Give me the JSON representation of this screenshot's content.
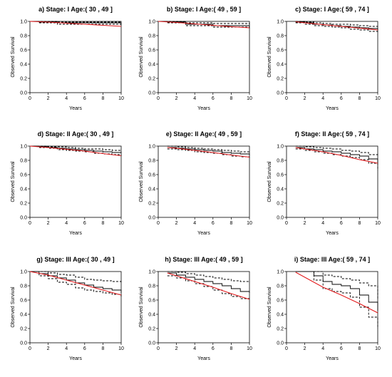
{
  "chart_data": [
    {
      "type": "line",
      "title": "a)  Stage: I  Age:( 30 , 49 ]",
      "xlabel": "Years",
      "ylabel": "Observed Survival",
      "xlim": [
        0,
        10
      ],
      "ylim": [
        0,
        1
      ],
      "xticks": [
        "0",
        "2",
        "4",
        "6",
        "8",
        "10"
      ],
      "yticks": [
        "0.0",
        "0.2",
        "0.4",
        "0.6",
        "0.8",
        "1.0"
      ],
      "series": [
        {
          "style": "step-solid",
          "color": "#000000",
          "x": [
            0,
            1,
            3,
            10
          ],
          "y": [
            1.0,
            0.99,
            0.98,
            0.97
          ]
        },
        {
          "style": "step-dashed",
          "color": "#000000",
          "x": [
            0,
            1,
            3,
            10
          ],
          "y": [
            1.0,
            1.0,
            0.99,
            0.99
          ]
        },
        {
          "style": "step-dashed",
          "color": "#000000",
          "x": [
            0,
            1,
            3,
            10
          ],
          "y": [
            1.0,
            0.98,
            0.96,
            0.95
          ]
        },
        {
          "style": "line",
          "color": "#e41a1c",
          "x": [
            0,
            2,
            4,
            6,
            8,
            10
          ],
          "y": [
            1.0,
            0.99,
            0.975,
            0.96,
            0.945,
            0.93
          ]
        }
      ]
    },
    {
      "type": "line",
      "title": "b)  Stage: I  Age:( 49 , 59 ]",
      "xlabel": "Years",
      "ylabel": "Observed Survival",
      "xlim": [
        0,
        10
      ],
      "ylim": [
        0,
        1
      ],
      "xticks": [
        "0",
        "2",
        "4",
        "6",
        "8",
        "10"
      ],
      "yticks": [
        "0.0",
        "0.2",
        "0.4",
        "0.6",
        "0.8",
        "1.0"
      ],
      "series": [
        {
          "style": "step-solid",
          "color": "#000000",
          "x": [
            0,
            1,
            3,
            6,
            10
          ],
          "y": [
            1.0,
            0.99,
            0.96,
            0.94,
            0.93
          ]
        },
        {
          "style": "step-dashed",
          "color": "#000000",
          "x": [
            0,
            1,
            3,
            6,
            10
          ],
          "y": [
            1.0,
            1.0,
            0.98,
            0.97,
            0.96
          ]
        },
        {
          "style": "step-dashed",
          "color": "#000000",
          "x": [
            0,
            1,
            3,
            6,
            10
          ],
          "y": [
            1.0,
            0.98,
            0.94,
            0.92,
            0.9
          ]
        },
        {
          "style": "line",
          "color": "#e41a1c",
          "x": [
            0,
            2,
            4,
            6,
            8,
            10
          ],
          "y": [
            1.0,
            0.985,
            0.965,
            0.945,
            0.925,
            0.91
          ]
        }
      ]
    },
    {
      "type": "line",
      "title": "c)  Stage: I  Age:( 59 , 74 ]",
      "xlabel": "Years",
      "ylabel": "Observed Survival",
      "xlim": [
        0,
        10
      ],
      "ylim": [
        0,
        1
      ],
      "xticks": [
        "0",
        "2",
        "4",
        "6",
        "8",
        "10"
      ],
      "yticks": [
        "0.0",
        "0.2",
        "0.4",
        "0.6",
        "0.8",
        "1.0"
      ],
      "series": [
        {
          "style": "step-solid",
          "color": "#000000",
          "x": [
            1,
            2,
            3,
            4,
            5,
            6,
            7,
            8,
            9,
            10
          ],
          "y": [
            0.99,
            0.98,
            0.96,
            0.95,
            0.94,
            0.93,
            0.92,
            0.91,
            0.9,
            0.88
          ]
        },
        {
          "style": "step-dashed",
          "color": "#000000",
          "x": [
            1,
            2,
            3,
            4,
            5,
            6,
            7,
            8,
            9,
            10
          ],
          "y": [
            1.0,
            0.99,
            0.98,
            0.97,
            0.96,
            0.96,
            0.95,
            0.94,
            0.93,
            0.92
          ]
        },
        {
          "style": "step-dashed",
          "color": "#000000",
          "x": [
            1,
            2,
            3,
            4,
            5,
            6,
            7,
            8,
            9,
            10
          ],
          "y": [
            0.98,
            0.96,
            0.94,
            0.93,
            0.92,
            0.91,
            0.89,
            0.88,
            0.86,
            0.84
          ]
        },
        {
          "style": "line",
          "color": "#e41a1c",
          "x": [
            1,
            2,
            4,
            6,
            8,
            10
          ],
          "y": [
            0.995,
            0.98,
            0.955,
            0.93,
            0.905,
            0.88
          ]
        }
      ]
    },
    {
      "type": "line",
      "title": "d)  Stage: II  Age:( 30 , 49 ]",
      "xlabel": "Years",
      "ylabel": "Observed Survival",
      "xlim": [
        0,
        10
      ],
      "ylim": [
        0,
        1
      ],
      "xticks": [
        "0",
        "2",
        "4",
        "6",
        "8",
        "10"
      ],
      "yticks": [
        "0.0",
        "0.2",
        "0.4",
        "0.6",
        "0.8",
        "1.0"
      ],
      "series": [
        {
          "style": "step-solid",
          "color": "#000000",
          "x": [
            0,
            1,
            2,
            3,
            4,
            5,
            6,
            7,
            8,
            9,
            10
          ],
          "y": [
            1.0,
            0.99,
            0.98,
            0.97,
            0.96,
            0.95,
            0.94,
            0.93,
            0.92,
            0.91,
            0.9
          ]
        },
        {
          "style": "step-dashed",
          "color": "#000000",
          "x": [
            0,
            1,
            2,
            3,
            4,
            5,
            6,
            7,
            8,
            9,
            10
          ],
          "y": [
            1.0,
            1.0,
            0.99,
            0.99,
            0.98,
            0.97,
            0.96,
            0.96,
            0.95,
            0.94,
            0.93
          ]
        },
        {
          "style": "step-dashed",
          "color": "#000000",
          "x": [
            0,
            1,
            2,
            3,
            4,
            5,
            6,
            7,
            8,
            9,
            10
          ],
          "y": [
            1.0,
            0.98,
            0.97,
            0.95,
            0.94,
            0.93,
            0.92,
            0.9,
            0.89,
            0.88,
            0.86
          ]
        },
        {
          "style": "line",
          "color": "#e41a1c",
          "x": [
            0,
            2,
            4,
            6,
            8,
            10
          ],
          "y": [
            1.0,
            0.98,
            0.955,
            0.93,
            0.895,
            0.865
          ]
        }
      ]
    },
    {
      "type": "line",
      "title": "e)  Stage: II  Age:( 49 , 59 ]",
      "xlabel": "Years",
      "ylabel": "Observed Survival",
      "xlim": [
        0,
        10
      ],
      "ylim": [
        0,
        1
      ],
      "xticks": [
        "0",
        "2",
        "4",
        "6",
        "8",
        "10"
      ],
      "yticks": [
        "0.0",
        "0.2",
        "0.4",
        "0.6",
        "0.8",
        "1.0"
      ],
      "series": [
        {
          "style": "step-solid",
          "color": "#000000",
          "x": [
            1,
            2,
            3,
            4,
            5,
            6,
            7,
            8,
            9,
            10
          ],
          "y": [
            0.98,
            0.97,
            0.96,
            0.95,
            0.94,
            0.93,
            0.91,
            0.9,
            0.89,
            0.87
          ]
        },
        {
          "style": "step-dashed",
          "color": "#000000",
          "x": [
            1,
            2,
            3,
            4,
            5,
            6,
            7,
            8,
            9,
            10
          ],
          "y": [
            1.0,
            0.99,
            0.98,
            0.97,
            0.96,
            0.95,
            0.94,
            0.93,
            0.92,
            0.91
          ]
        },
        {
          "style": "step-dashed",
          "color": "#000000",
          "x": [
            1,
            2,
            3,
            4,
            5,
            6,
            7,
            8,
            9,
            10
          ],
          "y": [
            0.96,
            0.95,
            0.94,
            0.92,
            0.91,
            0.9,
            0.88,
            0.86,
            0.85,
            0.83
          ]
        },
        {
          "style": "line",
          "color": "#e41a1c",
          "x": [
            1,
            2,
            4,
            6,
            8,
            10
          ],
          "y": [
            0.98,
            0.97,
            0.94,
            0.91,
            0.875,
            0.845
          ]
        }
      ]
    },
    {
      "type": "line",
      "title": "f)  Stage: II  Age:( 59 , 74 ]",
      "xlabel": "Years",
      "ylabel": "Observed Survival",
      "xlim": [
        0,
        10
      ],
      "ylim": [
        0,
        1
      ],
      "xticks": [
        "0",
        "2",
        "4",
        "6",
        "8",
        "10"
      ],
      "yticks": [
        "0.0",
        "0.2",
        "0.4",
        "0.6",
        "0.8",
        "1.0"
      ],
      "series": [
        {
          "style": "step-solid",
          "color": "#000000",
          "x": [
            1,
            2,
            3,
            4,
            5,
            6,
            7,
            8,
            9,
            10
          ],
          "y": [
            0.98,
            0.96,
            0.95,
            0.93,
            0.92,
            0.9,
            0.88,
            0.86,
            0.82,
            0.76
          ]
        },
        {
          "style": "step-dashed",
          "color": "#000000",
          "x": [
            1,
            2,
            3,
            4,
            5,
            6,
            7,
            8,
            9,
            10
          ],
          "y": [
            1.0,
            0.99,
            0.98,
            0.97,
            0.96,
            0.94,
            0.93,
            0.91,
            0.88,
            0.85
          ]
        },
        {
          "style": "step-dashed",
          "color": "#000000",
          "x": [
            1,
            2,
            3,
            4,
            5,
            6,
            7,
            8,
            9,
            10
          ],
          "y": [
            0.96,
            0.94,
            0.92,
            0.9,
            0.88,
            0.86,
            0.84,
            0.81,
            0.76,
            0.66
          ]
        },
        {
          "style": "line",
          "color": "#e41a1c",
          "x": [
            1,
            2,
            4,
            6,
            8,
            10
          ],
          "y": [
            0.98,
            0.96,
            0.92,
            0.87,
            0.81,
            0.76
          ]
        }
      ]
    },
    {
      "type": "line",
      "title": "g)  Stage: III  Age:( 30 , 49 ]",
      "xlabel": "Years",
      "ylabel": "Observed Survival",
      "xlim": [
        0,
        10
      ],
      "ylim": [
        0,
        1
      ],
      "xticks": [
        "0",
        "2",
        "4",
        "6",
        "8",
        "10"
      ],
      "yticks": [
        "0.0",
        "0.2",
        "0.4",
        "0.6",
        "0.8",
        "1.0"
      ],
      "series": [
        {
          "style": "step-solid",
          "color": "#000000",
          "x": [
            0,
            1,
            2,
            3,
            4,
            5,
            6,
            7,
            8,
            9,
            10
          ],
          "y": [
            1.0,
            0.97,
            0.94,
            0.91,
            0.88,
            0.84,
            0.81,
            0.78,
            0.76,
            0.74,
            0.7
          ]
        },
        {
          "style": "step-dashed",
          "color": "#000000",
          "x": [
            0,
            1,
            2,
            3,
            4,
            5,
            6,
            7,
            8,
            9,
            10
          ],
          "y": [
            1.0,
            1.0,
            0.98,
            0.96,
            0.95,
            0.92,
            0.89,
            0.88,
            0.87,
            0.86,
            0.85
          ]
        },
        {
          "style": "step-dashed",
          "color": "#000000",
          "x": [
            0,
            1,
            2,
            3,
            4,
            5,
            6,
            7,
            8,
            9,
            10
          ],
          "y": [
            1.0,
            0.94,
            0.9,
            0.85,
            0.82,
            0.77,
            0.74,
            0.72,
            0.7,
            0.68,
            0.65
          ]
        },
        {
          "style": "line",
          "color": "#e41a1c",
          "x": [
            0,
            2,
            4,
            6,
            8,
            10
          ],
          "y": [
            1.0,
            0.95,
            0.88,
            0.81,
            0.74,
            0.67
          ]
        }
      ]
    },
    {
      "type": "line",
      "title": "h)  Stage: III  Age:( 49 , 59 ]",
      "xlabel": "Years",
      "ylabel": "Observed Survival",
      "xlim": [
        0,
        10
      ],
      "ylim": [
        0,
        1
      ],
      "xticks": [
        "0",
        "2",
        "4",
        "6",
        "8",
        "10"
      ],
      "yticks": [
        "0.0",
        "0.2",
        "0.4",
        "0.6",
        "0.8",
        "1.0"
      ],
      "series": [
        {
          "style": "step-solid",
          "color": "#000000",
          "x": [
            1,
            2,
            3,
            4,
            5,
            6,
            7,
            8,
            9,
            10
          ],
          "y": [
            0.98,
            0.95,
            0.92,
            0.89,
            0.86,
            0.83,
            0.8,
            0.76,
            0.72,
            0.7
          ]
        },
        {
          "style": "step-dashed",
          "color": "#000000",
          "x": [
            1,
            2,
            3,
            4,
            5,
            6,
            7,
            8,
            9,
            10
          ],
          "y": [
            1.0,
            0.99,
            0.97,
            0.95,
            0.93,
            0.91,
            0.89,
            0.87,
            0.86,
            0.85
          ]
        },
        {
          "style": "step-dashed",
          "color": "#000000",
          "x": [
            1,
            2,
            3,
            4,
            5,
            6,
            7,
            8,
            9,
            10
          ],
          "y": [
            0.94,
            0.91,
            0.87,
            0.83,
            0.79,
            0.74,
            0.69,
            0.65,
            0.62,
            0.6
          ]
        },
        {
          "style": "line",
          "color": "#e41a1c",
          "x": [
            1,
            2,
            4,
            6,
            8,
            10
          ],
          "y": [
            0.98,
            0.94,
            0.86,
            0.78,
            0.69,
            0.61
          ]
        }
      ]
    },
    {
      "type": "line",
      "title": "i)  Stage: III  Age:( 59 , 74 ]",
      "xlabel": "Years",
      "ylabel": "Observed Survival",
      "xlim": [
        0,
        10
      ],
      "ylim": [
        0,
        1
      ],
      "xticks": [
        "0",
        "2",
        "4",
        "6",
        "8",
        "10"
      ],
      "yticks": [
        "0.0",
        "0.2",
        "0.4",
        "0.6",
        "0.8",
        "1.0"
      ],
      "series": [
        {
          "style": "step-solid",
          "color": "#000000",
          "x": [
            1,
            3,
            4,
            5,
            6,
            7,
            8,
            9,
            10
          ],
          "y": [
            1.0,
            0.94,
            0.86,
            0.82,
            0.8,
            0.76,
            0.67,
            0.57,
            0.45
          ]
        },
        {
          "style": "step-dashed",
          "color": "#000000",
          "x": [
            1,
            3,
            4,
            5,
            6,
            7,
            8,
            9,
            10
          ],
          "y": [
            1.0,
            1.0,
            0.95,
            0.93,
            0.9,
            0.88,
            0.84,
            0.8,
            0.62
          ]
        },
        {
          "style": "step-dashed",
          "color": "#000000",
          "x": [
            1,
            3,
            4,
            5,
            6,
            7,
            8,
            9,
            10
          ],
          "y": [
            1.0,
            0.88,
            0.76,
            0.72,
            0.7,
            0.64,
            0.5,
            0.36,
            0.2
          ]
        },
        {
          "style": "line",
          "color": "#e41a1c",
          "x": [
            1,
            2,
            4,
            6,
            8,
            10
          ],
          "y": [
            0.99,
            0.92,
            0.78,
            0.67,
            0.55,
            0.42
          ]
        }
      ]
    }
  ]
}
